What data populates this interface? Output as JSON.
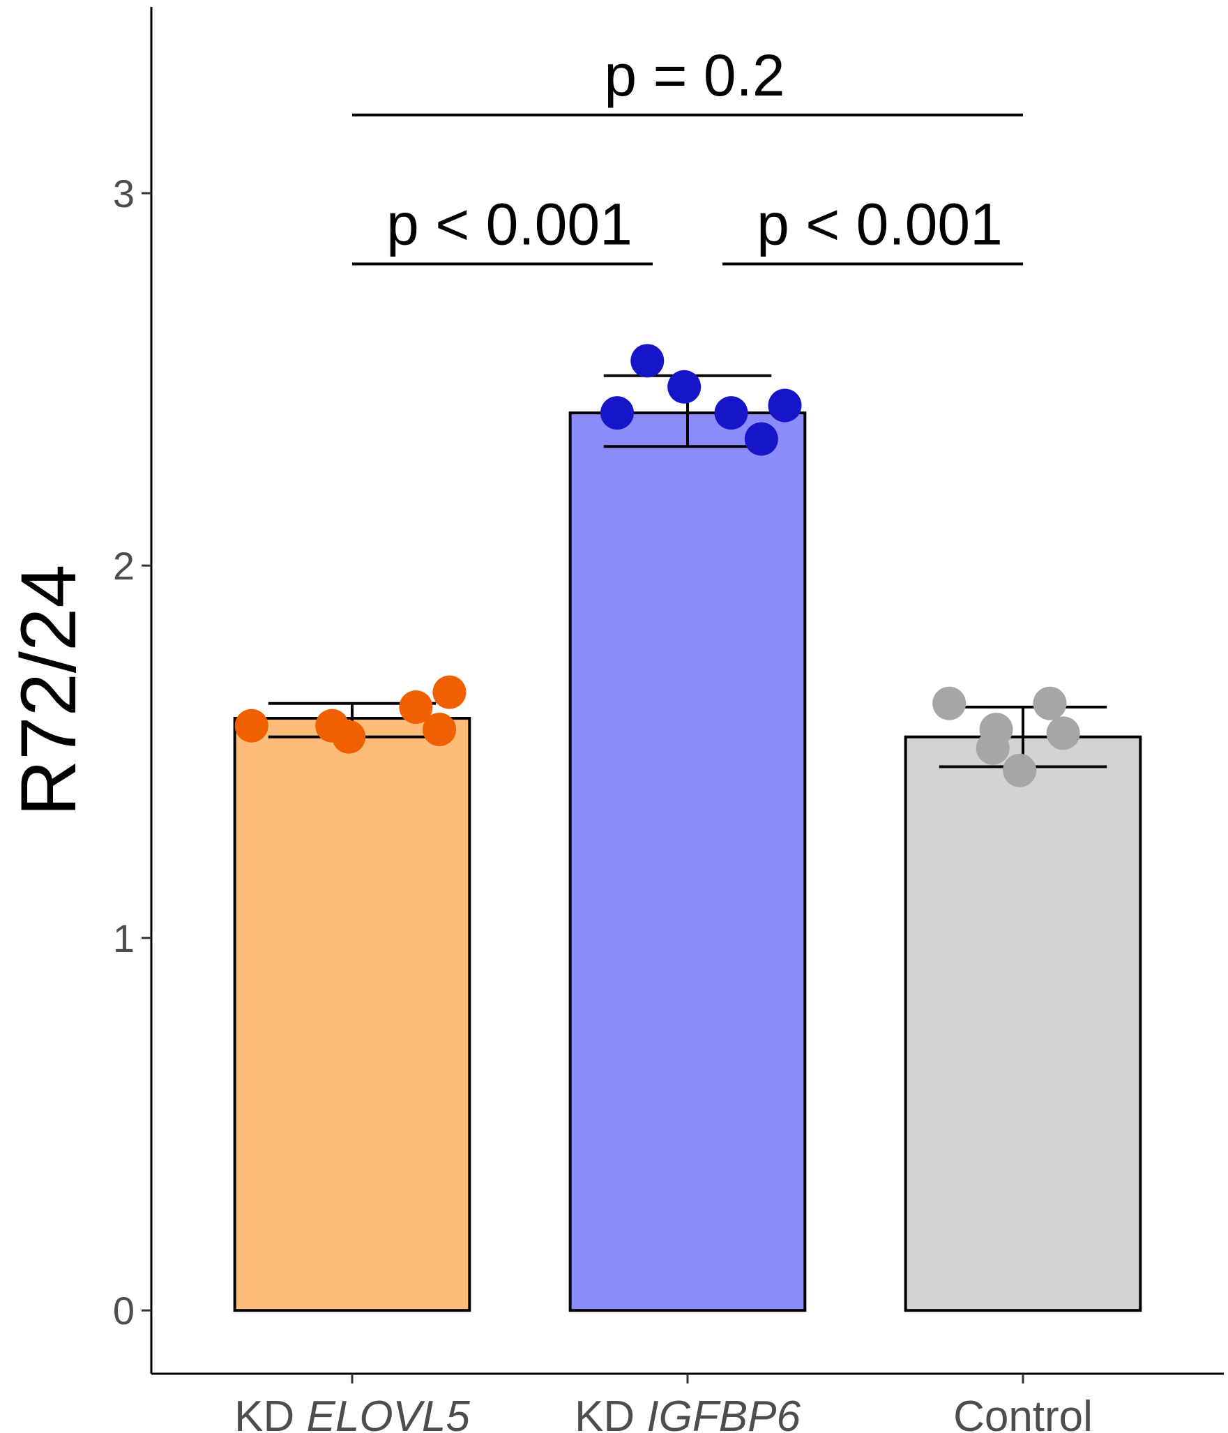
{
  "chart_data": {
    "type": "bar",
    "ylabel": "R72/24",
    "xlabel": "",
    "ylim": [
      -0.17,
      3.5
    ],
    "yticks": [
      0,
      1,
      2,
      3
    ],
    "grid": false,
    "categories": [
      {
        "prefix": "KD ",
        "gene": "ELOVL5"
      },
      {
        "prefix": "KD ",
        "gene": "IGFBP6"
      },
      {
        "prefix": "Control",
        "gene": ""
      }
    ],
    "values": [
      1.59,
      2.41,
      1.54
    ],
    "error_bars": [
      {
        "low": 1.54,
        "high": 1.63
      },
      {
        "low": 2.32,
        "high": 2.51
      },
      {
        "low": 1.46,
        "high": 1.62
      }
    ],
    "bar_colors": [
      "#FDBC7A",
      "#8B8CFB",
      "#D3D3D3"
    ],
    "point_colors": [
      "#F06000",
      "#1616C8",
      "#A6A6A6"
    ],
    "points": [
      [
        [
          -0.3,
          1.57
        ],
        [
          -0.06,
          1.57
        ],
        [
          -0.01,
          1.54
        ],
        [
          0.19,
          1.62
        ],
        [
          0.26,
          1.56
        ],
        [
          0.29,
          1.66
        ]
      ],
      [
        [
          -0.21,
          2.41
        ],
        [
          -0.12,
          2.55
        ],
        [
          -0.01,
          2.48
        ],
        [
          0.13,
          2.41
        ],
        [
          0.22,
          2.34
        ],
        [
          0.29,
          2.43
        ]
      ],
      [
        [
          -0.22,
          1.63
        ],
        [
          -0.09,
          1.51
        ],
        [
          -0.08,
          1.56
        ],
        [
          -0.01,
          1.45
        ],
        [
          0.08,
          1.63
        ],
        [
          0.12,
          1.55
        ]
      ]
    ],
    "comparisons": [
      {
        "from": 0,
        "to": 1,
        "label": "p < 0.001",
        "y": 2.81
      },
      {
        "from": 1,
        "to": 2,
        "label": "p < 0.001",
        "y": 2.81
      },
      {
        "from": 0,
        "to": 2,
        "label": "p = 0.2",
        "y": 3.21
      }
    ]
  }
}
